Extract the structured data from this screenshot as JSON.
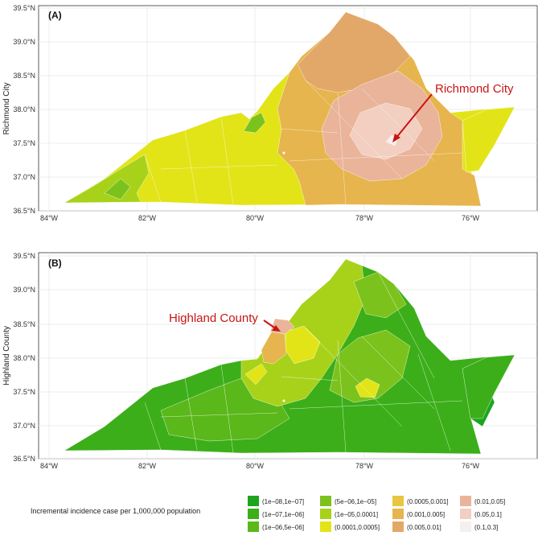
{
  "panels": [
    {
      "tag": "(A)",
      "side_label": "Richmond City",
      "annotation": "Richmond City",
      "lat_ticks": [
        "39.5°N",
        "39.0°N",
        "38.5°N",
        "38.0°N",
        "37.5°N",
        "37.0°N",
        "36.5°N"
      ],
      "lon_ticks": [
        "84°W",
        "82°W",
        "80°W",
        "78°W",
        "76°W"
      ]
    },
    {
      "tag": "(B)",
      "side_label": "Highland County",
      "annotation": "Highland County",
      "lat_ticks": [
        "39.5°N",
        "39.0°N",
        "38.5°N",
        "38.0°N",
        "37.5°N",
        "37.0°N",
        "36.5°N"
      ],
      "lon_ticks": [
        "84°W",
        "82°W",
        "80°W",
        "78°W",
        "76°W"
      ]
    }
  ],
  "legend": {
    "title": "Incremental incidence case per 1,000,000 population",
    "items": [
      {
        "label": "(1e−08,1e−07]",
        "color": "#1ea51e"
      },
      {
        "label": "(1e−07,1e−06]",
        "color": "#3cae1a"
      },
      {
        "label": "(1e−06,5e−06]",
        "color": "#5ab81a"
      },
      {
        "label": "(5e−06,1e−05]",
        "color": "#7cc21c"
      },
      {
        "label": "(1e−05,0.0001]",
        "color": "#a8d21a"
      },
      {
        "label": "(0.0001,0.0005]",
        "color": "#e2e418"
      },
      {
        "label": "(0.0005,0.001]",
        "color": "#e8c640"
      },
      {
        "label": "(0.001,0.005]",
        "color": "#e6b54e"
      },
      {
        "label": "(0.005,0.01]",
        "color": "#e2a86a"
      },
      {
        "label": "(0.01,0.05]",
        "color": "#eab49a"
      },
      {
        "label": "(0.05,0.1]",
        "color": "#f2cfc0"
      },
      {
        "label": "(0.1,0.3]",
        "color": "#f4f0ee"
      }
    ]
  },
  "colors": {
    "annotation": "#c81414",
    "grid": "#e6e6e6",
    "panel_border": "#333333"
  }
}
